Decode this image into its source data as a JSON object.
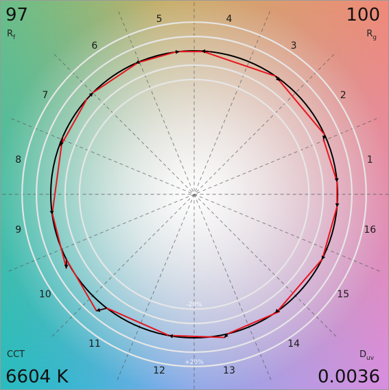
{
  "metrics": {
    "rf_value": "97",
    "rf_label_main": "R",
    "rf_label_sub": "f",
    "rg_value": "100",
    "rg_label_main": "R",
    "rg_label_sub": "g",
    "cct_label": "CCT",
    "cct_value": "6604 K",
    "duv_label_main": "D",
    "duv_label_sub": "uv",
    "duv_value": "0.0036"
  },
  "chart_data": {
    "type": "color-vector-graphic",
    "reference_circle": 1.0,
    "rings": [
      {
        "scale": 0.8,
        "label": "-20%"
      },
      {
        "scale": 0.9,
        "label": ""
      },
      {
        "scale": 1.1,
        "label": ""
      },
      {
        "scale": 1.2,
        "label": "+20%"
      }
    ],
    "hue_bins": [
      "1",
      "2",
      "3",
      "4",
      "5",
      "6",
      "7",
      "8",
      "9",
      "10",
      "11",
      "12",
      "13",
      "14",
      "15",
      "16"
    ],
    "test_source_radius": [
      1.0,
      1.0,
      1.0,
      1.0,
      1.0,
      1.0,
      0.98,
      0.99,
      0.99,
      1.0,
      1.02,
      1.01,
      1.02,
      1.02,
      1.01,
      1.0
    ],
    "vectors": [
      {
        "bin": "1",
        "from": [
          203.5,
          1.0
        ],
        "to": [
          200.0,
          0.99
        ]
      },
      {
        "bin": "2",
        "from": [
          221.5,
          1.0
        ],
        "to": [
          225.0,
          1.0
        ]
      },
      {
        "bin": "3",
        "from": [
          247.5,
          1.0
        ],
        "to": [
          246.0,
          1.0
        ]
      },
      {
        "bin": "4",
        "from": [
          262.5,
          1.0
        ],
        "to": [
          264.0,
          1.0
        ]
      },
      {
        "bin": "5",
        "from": [
          276.0,
          1.0
        ],
        "to": [
          273.0,
          1.0
        ]
      },
      {
        "bin": "6",
        "from": [
          304.5,
          1.0
        ],
        "to": [
          307.0,
          0.99
        ]
      },
      {
        "bin": "7",
        "from": [
          335.5,
          1.0
        ],
        "to": [
          337.0,
          0.98
        ]
      },
      {
        "bin": "8",
        "from": [
          355.0,
          1.0
        ],
        "to": [
          355.0,
          1.0
        ]
      },
      {
        "bin": "9",
        "from": [
          5.0,
          1.0
        ],
        "to": [
          5.0,
          1.0
        ]
      },
      {
        "bin": "10",
        "from": [
          26.5,
          1.0
        ],
        "to": [
          27.0,
          1.0
        ]
      },
      {
        "bin": "11",
        "from": [
          54.5,
          1.0
        ],
        "to": [
          54.0,
          1.01
        ]
      },
      {
        "bin": "12",
        "from": [
          76.5,
          1.0
        ],
        "to": [
          78.0,
          1.02
        ]
      },
      {
        "bin": "13",
        "from": [
          100.5,
          1.0
        ],
        "to": [
          100.0,
          1.0
        ]
      },
      {
        "bin": "14",
        "from": [
          127.5,
          1.0
        ],
        "to": [
          130.0,
          1.06
        ]
      },
      {
        "bin": "15",
        "from": [
          153.0,
          1.0
        ],
        "to": [
          150.0,
          1.03
        ]
      },
      {
        "bin": "16",
        "from": [
          173.0,
          1.0
        ],
        "to": [
          172.0,
          1.0
        ]
      }
    ],
    "red_path": [
      [
        203.5,
        1.0
      ],
      [
        200.0,
        0.99
      ],
      [
        221.5,
        1.0
      ],
      [
        225.0,
        1.0
      ],
      [
        247.5,
        1.0
      ],
      [
        246.0,
        1.0
      ],
      [
        262.5,
        1.0
      ],
      [
        264.0,
        1.0
      ],
      [
        276.0,
        1.0
      ],
      [
        273.0,
        1.0
      ],
      [
        304.5,
        1.0
      ],
      [
        307.0,
        0.99
      ],
      [
        335.5,
        1.0
      ],
      [
        337.0,
        0.98
      ],
      [
        355.0,
        1.0
      ],
      [
        5.0,
        1.0
      ],
      [
        26.5,
        1.0
      ],
      [
        27.0,
        1.0
      ],
      [
        54.5,
        1.0
      ],
      [
        54.0,
        1.01
      ],
      [
        76.5,
        1.0
      ],
      [
        78.0,
        1.02
      ],
      [
        100.5,
        1.0
      ],
      [
        100.0,
        1.0
      ],
      [
        127.5,
        1.0
      ],
      [
        130.0,
        1.06
      ],
      [
        153.0,
        1.0
      ],
      [
        150.0,
        1.03
      ],
      [
        173.0,
        1.0
      ],
      [
        172.0,
        1.0
      ]
    ],
    "colors": {
      "reference_line": "#000000",
      "test_line": "#e8141e",
      "rings": "#e6e6e6",
      "guides": "#555555"
    }
  }
}
